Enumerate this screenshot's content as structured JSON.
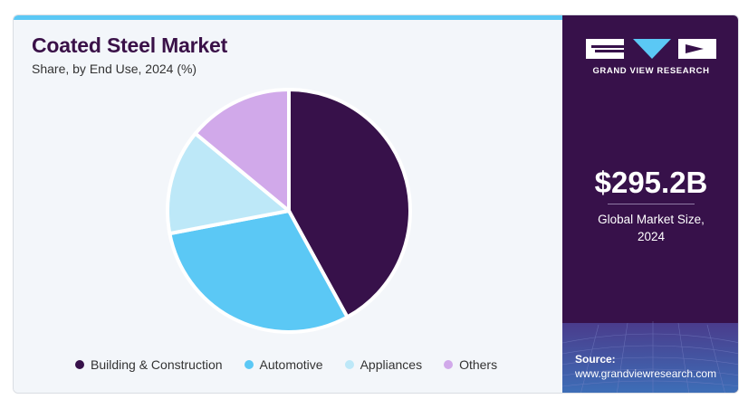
{
  "header": {
    "title": "Coated Steel Market",
    "subtitle": "Share, by End Use, 2024 (%)"
  },
  "chart_data": {
    "type": "pie",
    "categories": [
      "Building & Construction",
      "Automotive",
      "Appliances",
      "Others"
    ],
    "values": [
      42,
      30,
      14,
      14
    ],
    "colors": [
      "#37114a",
      "#5bc8f5",
      "#bde8f8",
      "#d1a9ea"
    ],
    "start_angle_deg": 0,
    "direction": "clockwise",
    "legend_position": "bottom",
    "title": "Coated Steel Market",
    "subtitle": "Share, by End Use, 2024 (%)"
  },
  "sidebar": {
    "logo_text": "GRAND VIEW RESEARCH",
    "market_value": "$295.2B",
    "market_caption_line1": "Global Market Size,",
    "market_caption_line2": "2024",
    "source_label": "Source:",
    "source_url": "www.grandviewresearch.com"
  },
  "colors": {
    "brand_purple": "#37114a",
    "accent_blue": "#5bc8f5"
  }
}
